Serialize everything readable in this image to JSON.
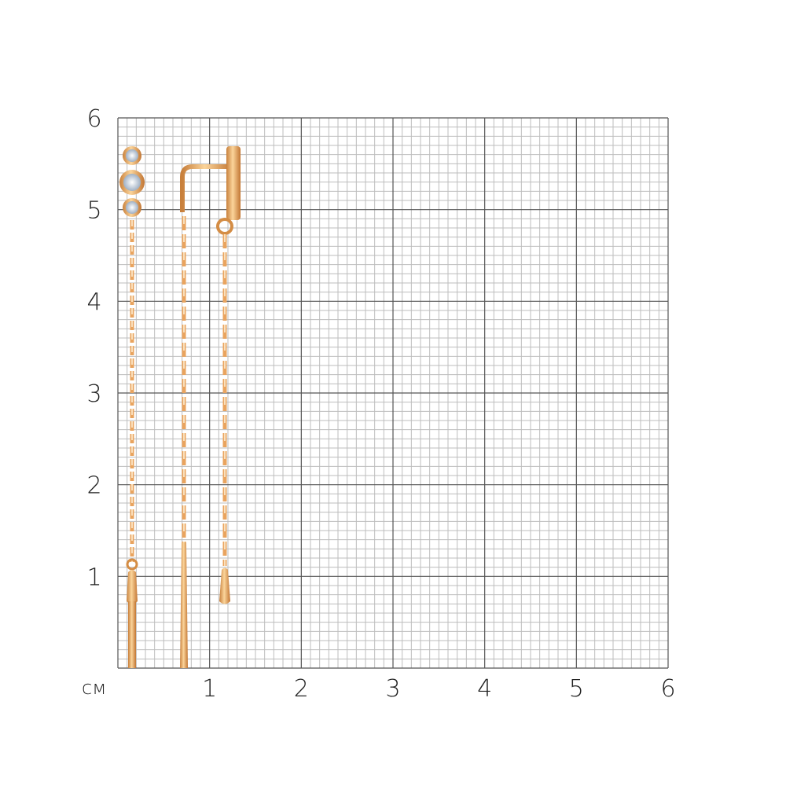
{
  "scale": {
    "unit_label": "см",
    "x_ticks": [
      "1",
      "2",
      "3",
      "4",
      "5",
      "6"
    ],
    "y_ticks": [
      "1",
      "2",
      "3",
      "4",
      "5",
      "6"
    ],
    "range_cm": [
      0,
      6
    ],
    "minor_divisions_per_cm": 10
  },
  "colors": {
    "major_grid": "#555555",
    "minor_grid": "#bdbdbd",
    "gold": "#e9a45f",
    "gold_dark": "#b8702f",
    "stone": "#dfe6ee"
  },
  "product": {
    "items": [
      "stud-with-three-stones-and-chain-bar",
      "chain-with-bar-and-hook",
      "ear-cuff-with-chain-and-drop"
    ]
  }
}
